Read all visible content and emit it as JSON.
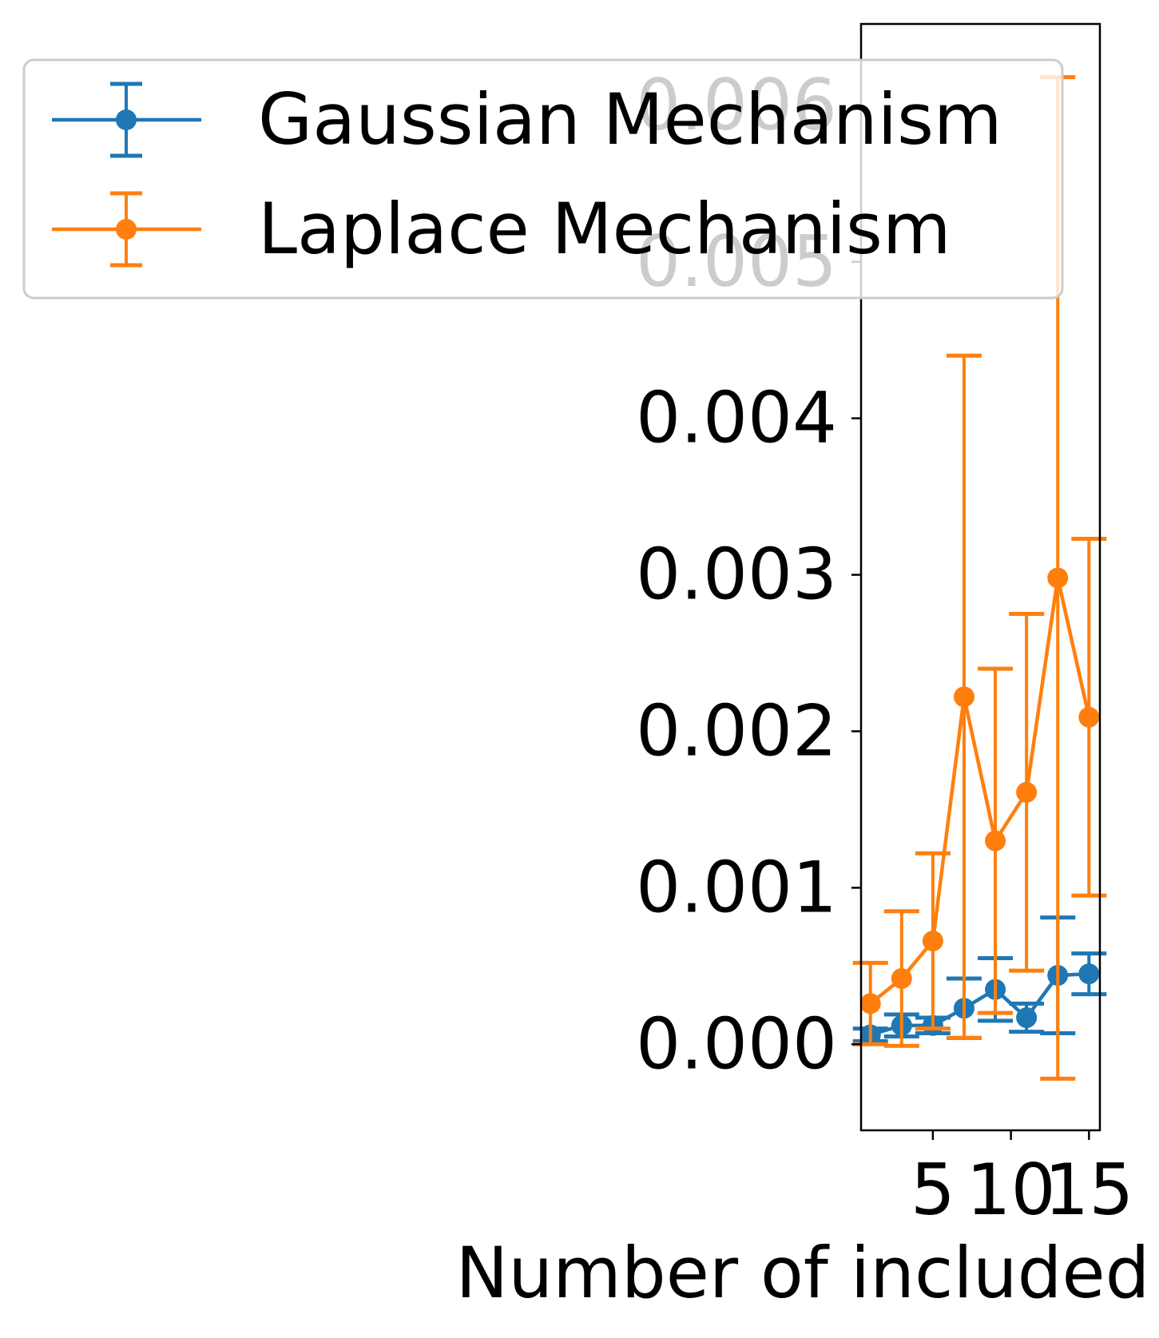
{
  "chart_data": {
    "type": "line",
    "title": "",
    "xlabel": "Number of included",
    "ylabel": "",
    "xlim": [
      0.4,
      15.7
    ],
    "ylim": [
      -0.00055,
      0.00652
    ],
    "x_ticks": [
      5,
      10,
      15
    ],
    "x_tick_labels": [
      "5",
      "10",
      "15"
    ],
    "y_ticks": [
      0.0,
      0.001,
      0.002,
      0.003,
      0.004,
      0.005,
      0.006
    ],
    "y_tick_labels": [
      "0.000",
      "0.001",
      "0.002",
      "0.003",
      "0.004",
      "0.005",
      "0.006"
    ],
    "grid": false,
    "legend_position": "top-left",
    "colors": {
      "gaussian": "#1f77b4",
      "laplace": "#ff7f0e",
      "axes": "#000000",
      "legend_border": "#cccccc"
    },
    "series": [
      {
        "name": "Gaussian Mechanism",
        "color": "#1f77b4",
        "x": [
          1,
          3,
          5,
          7,
          9,
          11,
          13,
          15
        ],
        "y": [
          6e-05,
          0.00012,
          0.00012,
          0.00023,
          0.00035,
          0.00017,
          0.00044,
          0.00045
        ],
        "yerr": [
          4e-05,
          7e-05,
          5e-05,
          0.00019,
          0.0002,
          9e-05,
          0.00037,
          0.00013
        ]
      },
      {
        "name": "Laplace Mechanism",
        "color": "#ff7f0e",
        "x": [
          1,
          3,
          5,
          7,
          9,
          11,
          13,
          15
        ],
        "y": [
          0.00026,
          0.00042,
          0.00066,
          0.00222,
          0.0013,
          0.00161,
          0.00298,
          0.00209
        ],
        "yerr": [
          0.00026,
          0.00043,
          0.00056,
          0.00218,
          0.0011,
          0.00114,
          0.0032,
          0.00114
        ]
      }
    ]
  }
}
